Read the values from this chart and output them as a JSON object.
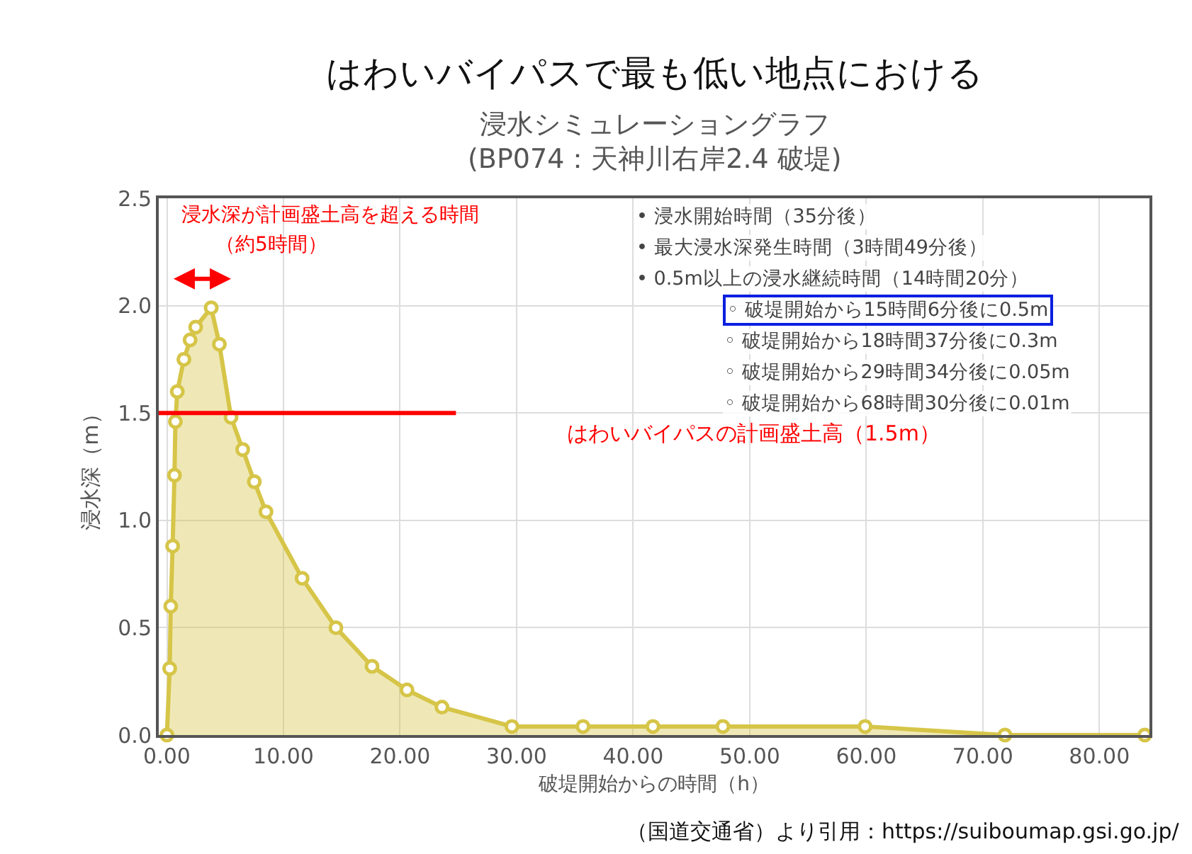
{
  "chart_data": {
    "type": "area",
    "title": "はわいバイパスで最も低い地点における",
    "subtitle": "浸水シミュレーショングラフ\n(BP074：天神川右岸2.4 破堤)",
    "xlabel": "破堤開始からの時間（h）",
    "ylabel": "浸水深（m）",
    "x": [
      0,
      0.24,
      0.33,
      0.49,
      0.65,
      0.73,
      0.89,
      1.46,
      1.99,
      2.47,
      3.8,
      4.5,
      5.5,
      6.5,
      7.5,
      8.5,
      11.6,
      14.5,
      17.6,
      20.6,
      23.6,
      29.6,
      35.7,
      41.7,
      47.7,
      59.9,
      71.9,
      83.9
    ],
    "series": [
      {
        "color": "#d6c548",
        "values": [
          0,
          0.31,
          0.6,
          0.88,
          1.21,
          1.46,
          1.6,
          1.75,
          1.84,
          1.9,
          1.99,
          1.82,
          1.48,
          1.33,
          1.18,
          1.04,
          0.73,
          0.5,
          0.32,
          0.21,
          0.13,
          0.04,
          0.04,
          0.04,
          0.04,
          0.04,
          0,
          0
        ]
      }
    ],
    "xlim": [
      -0.7,
      84.3
    ],
    "ylim": [
      0,
      2.5
    ],
    "xticks": [
      {
        "value": 0,
        "label": "0.00"
      },
      {
        "value": 10,
        "label": "10.00"
      },
      {
        "value": 20,
        "label": "20.00"
      },
      {
        "value": 30,
        "label": "30.00"
      },
      {
        "value": 40,
        "label": "40.00"
      },
      {
        "value": 50,
        "label": "50.00"
      },
      {
        "value": 60,
        "label": "60.00"
      },
      {
        "value": 70,
        "label": "70.00"
      },
      {
        "value": 80,
        "label": "80.00"
      }
    ],
    "yticks": [
      {
        "value": 0,
        "label": "0.0"
      },
      {
        "value": 0.5,
        "label": "0.5"
      },
      {
        "value": 1,
        "label": "1.0"
      },
      {
        "value": 1.5,
        "label": "1.5"
      },
      {
        "value": 2,
        "label": "2.0"
      },
      {
        "value": 2.5,
        "label": "2.5"
      }
    ],
    "ref_lines": [
      {
        "axis": "y",
        "value": 1.5,
        "label": "はわいバイパスの計画盛土高（1.5m）",
        "color": "#ff0000"
      }
    ],
    "annotations": [
      "浸水深が計画盛土高を超える時間",
      "（約5時間）",
      "• 浸水開始時間（35分後）",
      "• 最大浸水深発生時間（3時間49分後）",
      "• 0.5m以上の浸水継続時間（14時間20分）",
      "◦ 破堤開始から15時間6分後に0.5m",
      "◦ 破堤開始から18時間37分後に0.3m",
      "◦ 破堤開始から29時間34分後に0.05m",
      "◦ 破堤開始から68時間30分後に0.01m",
      "（国道交通省）より引用：https://suiboumap.gsi.go.jp/"
    ],
    "grid": true,
    "marker": "circle"
  }
}
